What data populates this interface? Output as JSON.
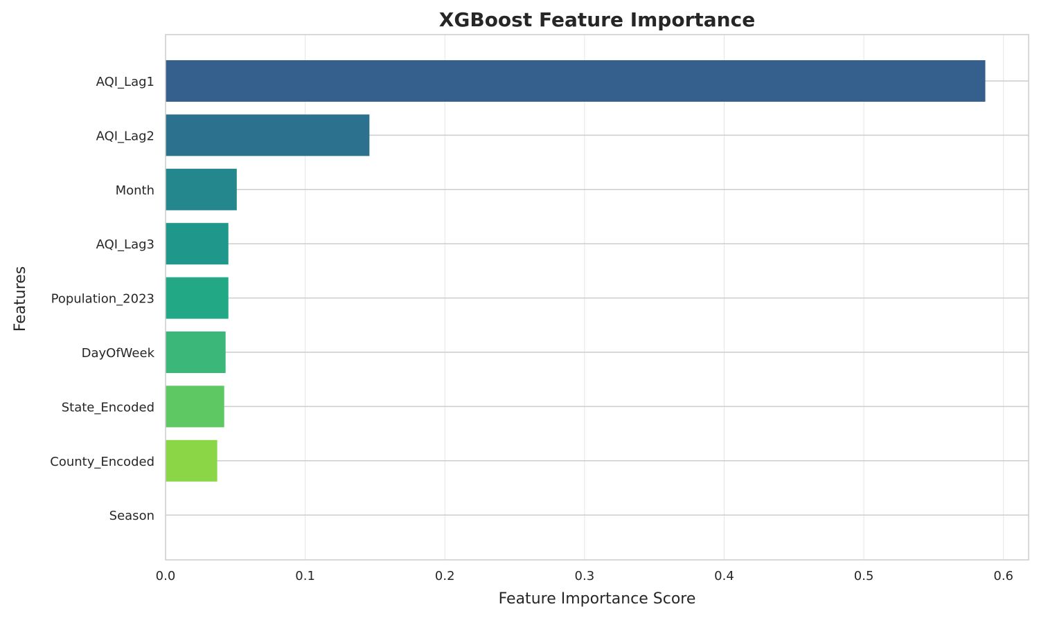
{
  "chart_data": {
    "type": "bar",
    "orientation": "horizontal",
    "title": "XGBoost Feature Importance",
    "xlabel": "Feature Importance Score",
    "ylabel": "Features",
    "xlim": [
      0.0,
      0.618
    ],
    "xticks": [
      0.0,
      0.1,
      0.2,
      0.3,
      0.4,
      0.5,
      0.6
    ],
    "xtick_labels": [
      "0.0",
      "0.1",
      "0.2",
      "0.3",
      "0.4",
      "0.5",
      "0.6"
    ],
    "grid": true,
    "categories": [
      "AQI_Lag1",
      "AQI_Lag2",
      "Month",
      "AQI_Lag3",
      "Population_2023",
      "DayOfWeek",
      "State_Encoded",
      "County_Encoded",
      "Season"
    ],
    "values": [
      0.587,
      0.146,
      0.051,
      0.045,
      0.045,
      0.043,
      0.042,
      0.037,
      0.0
    ],
    "colors": [
      "#35608d",
      "#2c728e",
      "#24878e",
      "#1f988b",
      "#22a884",
      "#3bb77a",
      "#5ec962",
      "#8ad646",
      "#bddf26"
    ]
  }
}
